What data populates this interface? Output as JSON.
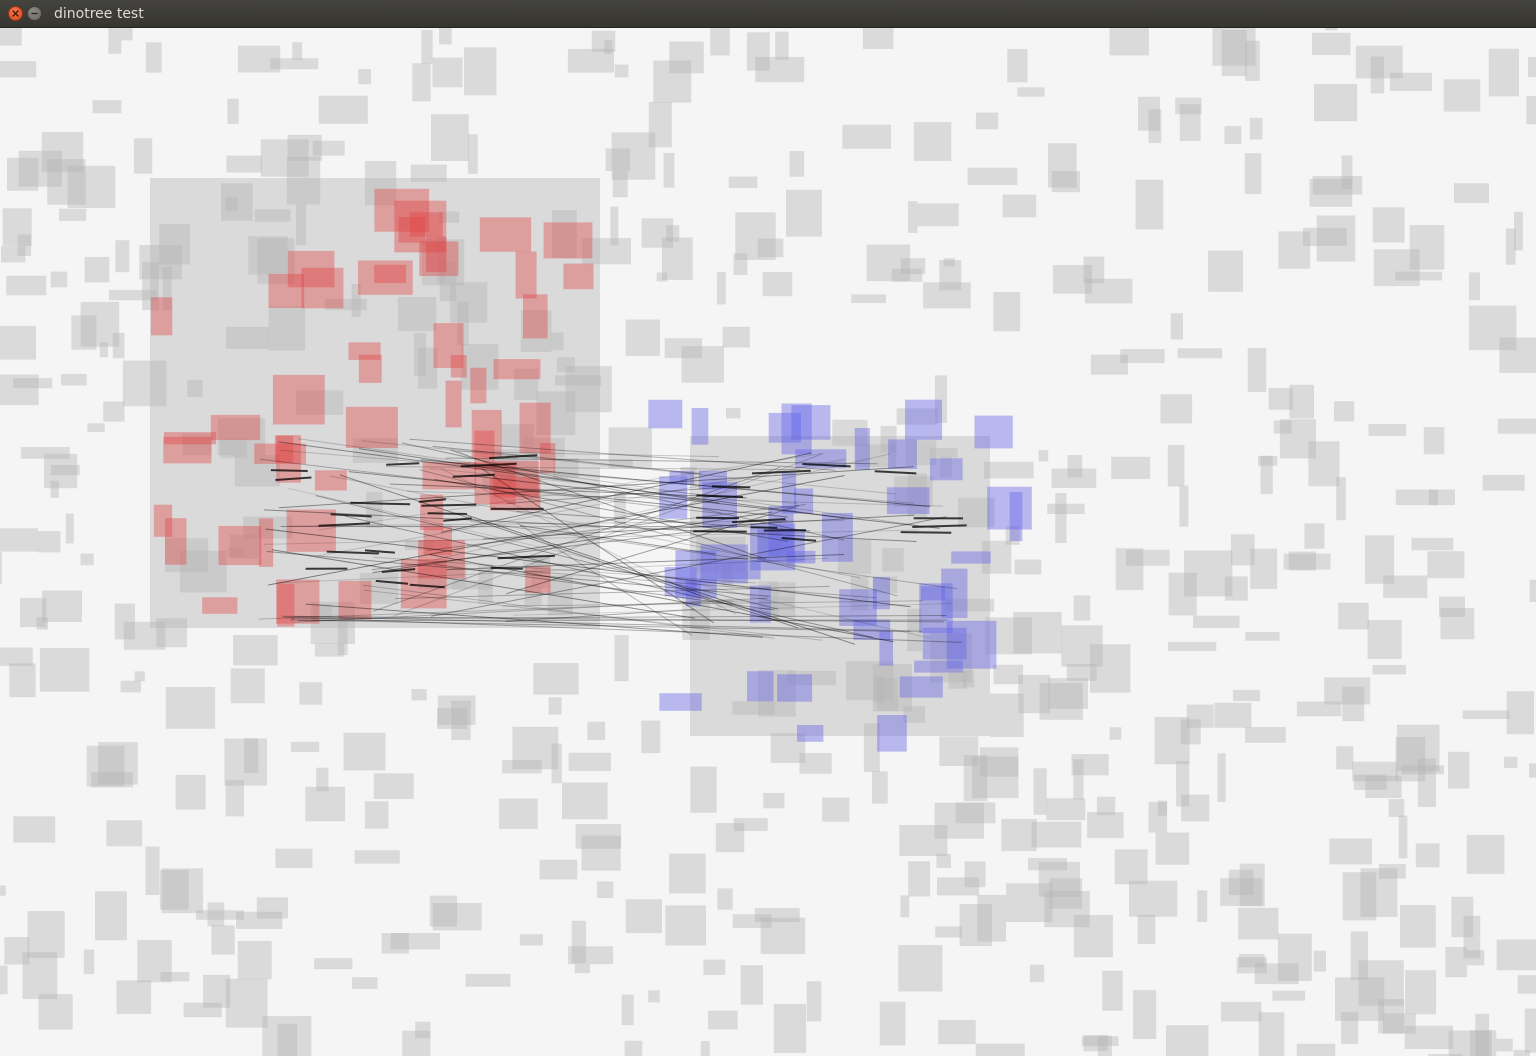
{
  "window": {
    "title": "dinotree test",
    "close_icon": "close-icon",
    "minimize_icon": "minimize-icon"
  },
  "colors": {
    "background": "#f5f5f5",
    "grey_rect": "#b4b4b4",
    "red_rect": "#e04444",
    "blue_rect": "#6464e6",
    "region": "#c8c8c8",
    "line": "#000000"
  }
}
